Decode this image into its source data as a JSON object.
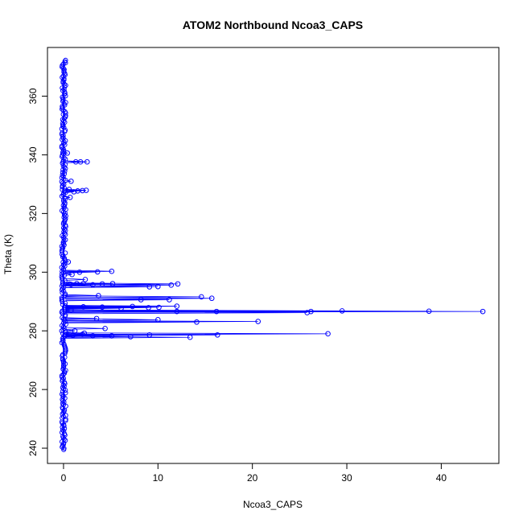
{
  "chart_data": {
    "type": "scatter",
    "title": "ATOM2 Northbound Ncoa3_CAPS",
    "xlabel": "Ncoa3_CAPS",
    "ylabel": "Theta (K)",
    "xlim": [
      -1.7,
      46.1
    ],
    "ylim": [
      234.8,
      376.6
    ],
    "xticks": [
      0,
      10,
      20,
      30,
      40
    ],
    "yticks": [
      240,
      260,
      280,
      300,
      320,
      340,
      360
    ],
    "grid": false,
    "legend": "none",
    "series": [
      {
        "color": "#0000ff",
        "marker": "open-circle",
        "connected": true,
        "dense_trace": {
          "x_min": -0.2,
          "x_max": 0.25,
          "y_min": 239.5,
          "y_max": 372.5
        },
        "x": [
          0.4,
          1.8,
          2.5,
          1.3,
          0.8,
          1.5,
          0.6,
          2.0,
          2.4,
          1.1,
          0.7,
          0.5,
          0.9,
          1.7,
          0.6,
          0.8,
          5.1,
          3.6,
          2.3,
          11.4,
          12.1,
          10.0,
          9.1,
          5.2,
          4.1,
          3.1,
          2.1,
          1.4,
          14.6,
          15.7,
          11.2,
          8.2,
          3.7,
          12.0,
          10.1,
          7.3,
          6.1,
          4.1,
          2.1,
          9.0,
          16.2,
          26.2,
          29.5,
          38.7,
          44.4,
          25.8,
          12.0,
          0.8,
          14.1,
          20.6,
          10.0,
          3.5,
          4.4,
          2.2,
          1.2,
          28.0,
          16.3,
          13.4,
          9.1,
          7.1,
          5.1,
          3.1,
          2.0,
          1.0
        ],
        "y": [
          340.6,
          337.6,
          337.6,
          337.6,
          331.0,
          327.7,
          328.2,
          327.8,
          327.9,
          327.4,
          325.5,
          303.5,
          299.2,
          300.0,
          296.0,
          295.8,
          300.3,
          300.1,
          297.5,
          295.6,
          296.0,
          295.1,
          295.0,
          296.1,
          296.0,
          295.7,
          296.1,
          296.1,
          291.6,
          291.1,
          290.6,
          290.6,
          292.0,
          288.4,
          288.0,
          288.3,
          287.7,
          288.1,
          288.2,
          287.9,
          286.6,
          286.6,
          286.8,
          286.7,
          286.6,
          286.2,
          286.6,
          287.0,
          283.0,
          283.2,
          283.8,
          284.2,
          280.8,
          279.2,
          280.0,
          279.0,
          278.6,
          277.8,
          278.6,
          278.0,
          278.3,
          278.3,
          278.8,
          278.5
        ]
      }
    ]
  }
}
